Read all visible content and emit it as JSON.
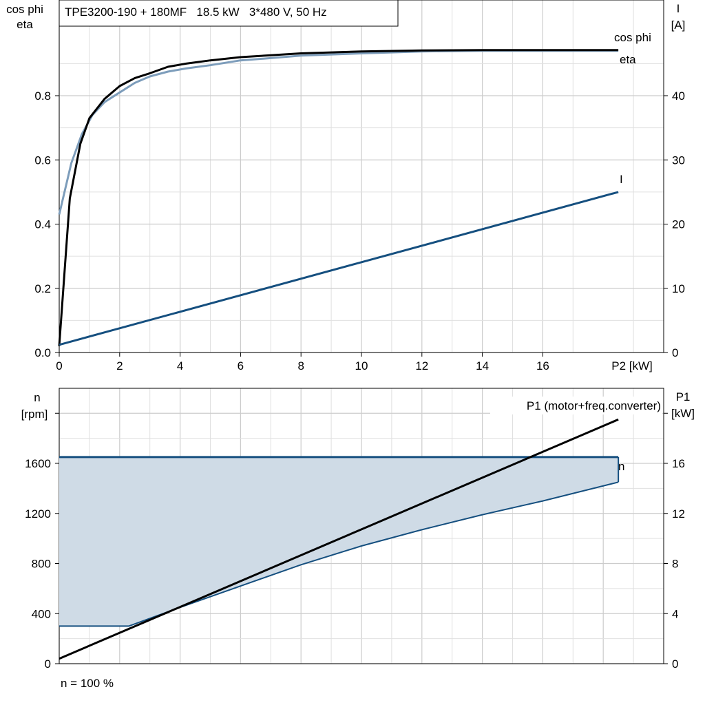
{
  "header": {
    "title": "TPE3200-190 + 180MF   18.5 kW   3*480 V, 50 Hz"
  },
  "footer": {
    "speed_note": "n = 100 %"
  },
  "colors": {
    "cosphi": "#7d9dbb",
    "eta": "#000000",
    "current": "#154f7f",
    "speed": "#154f7f",
    "speed_fill": "#cfdbe6",
    "power": "#000000",
    "grid": "#cccccc"
  },
  "chart_data": [
    {
      "type": "line",
      "xlabel": "P2 [kW]",
      "ylabel_left": [
        "cos phi",
        "eta"
      ],
      "ylabel_right": [
        "I",
        "[A]"
      ],
      "xlim": [
        0,
        19.5
      ],
      "ylim_left": [
        0,
        1.0
      ],
      "ylim_right": [
        0,
        50
      ],
      "x_ticks": [
        "0",
        "2",
        "4",
        "6",
        "8",
        "10",
        "12",
        "14",
        "16"
      ],
      "y_left_ticks": [
        "0.0",
        "0.2",
        "0.4",
        "0.6",
        "0.8"
      ],
      "y_right_ticks": [
        "0",
        "10",
        "20",
        "30",
        "40"
      ],
      "grid": true,
      "series": [
        {
          "name": "cos phi",
          "axis": "left",
          "color": "#7d9dbb",
          "x": [
            0,
            0.4,
            0.75,
            1.1,
            1.5,
            2,
            2.5,
            3,
            3.6,
            4.2,
            5,
            6,
            7,
            8,
            10,
            12,
            14,
            16,
            18.5
          ],
          "y": [
            0.43,
            0.59,
            0.68,
            0.74,
            0.78,
            0.81,
            0.84,
            0.86,
            0.875,
            0.885,
            0.895,
            0.91,
            0.917,
            0.925,
            0.932,
            0.938,
            0.94,
            0.94,
            0.94
          ]
        },
        {
          "name": "eta",
          "axis": "left",
          "color": "#000000",
          "x": [
            0,
            0.35,
            0.7,
            1,
            1.5,
            2,
            2.5,
            3,
            3.6,
            4.2,
            5,
            6,
            7,
            8,
            10,
            12,
            14,
            16,
            18.5
          ],
          "y": [
            0.02,
            0.48,
            0.65,
            0.73,
            0.79,
            0.83,
            0.855,
            0.87,
            0.89,
            0.9,
            0.91,
            0.92,
            0.926,
            0.932,
            0.938,
            0.941,
            0.942,
            0.942,
            0.942
          ]
        },
        {
          "name": "I",
          "axis": "right",
          "color": "#154f7f",
          "x": [
            0,
            18.5
          ],
          "y": [
            1.2,
            25
          ]
        }
      ]
    },
    {
      "type": "line",
      "ylabel_left": [
        "n",
        "[rpm]"
      ],
      "ylabel_right": [
        "P1",
        "[kW]"
      ],
      "xlim": [
        0,
        19.5
      ],
      "ylim_left": [
        0,
        2200
      ],
      "ylim_right": [
        0,
        22
      ],
      "y_left_ticks": [
        "0",
        "400",
        "800",
        "1200",
        "1600"
      ],
      "y_right_ticks": [
        "0",
        "4",
        "8",
        "12",
        "16"
      ],
      "grid": true,
      "series": [
        {
          "name": "n",
          "axis": "left",
          "color": "#154f7f",
          "x": [
            0,
            18.5
          ],
          "y": [
            1650,
            1650
          ]
        },
        {
          "axis": "left",
          "color": "#154f7f",
          "x": [
            0,
            2.3,
            4,
            6,
            8,
            10,
            12,
            14,
            16,
            18.5
          ],
          "y": [
            300,
            300,
            450,
            620,
            790,
            940,
            1070,
            1190,
            1300,
            1450
          ]
        },
        {
          "name": "P1 (motor+freq.converter)",
          "axis": "right",
          "color": "#000000",
          "x": [
            0,
            18.5
          ],
          "y": [
            0.4,
            19.5
          ]
        }
      ]
    }
  ]
}
